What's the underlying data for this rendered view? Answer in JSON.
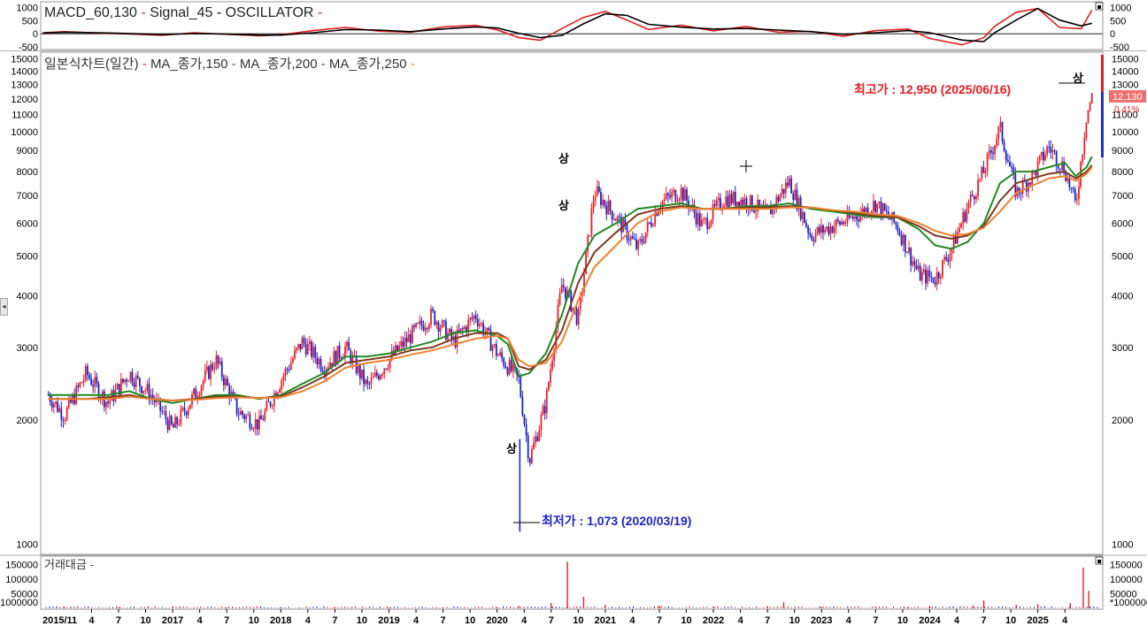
{
  "indicator_header": {
    "macd": "MACD_60,130",
    "signal": "Signal_45",
    "oscillator": "OSCILLATOR",
    "dash": "-"
  },
  "price_header": {
    "chart_name": "일본식차트(일간)",
    "ma1": "MA_종가,150",
    "ma2": "MA_종가,200",
    "ma3": "MA_종가,250",
    "dash": "-"
  },
  "volume_header": {
    "label": "거래대금",
    "dash": "-"
  },
  "annotations": {
    "high_label": "최고가 : 12,950 (2025/06/16)",
    "low_label": "최저가 : 1,073 (2020/03/19)",
    "last_price_badge": "12,130",
    "change_badge": "0.41%",
    "marker_char": "상"
  },
  "colors": {
    "up_candle": "#e8202a",
    "down_candle": "#1e22c8",
    "macd_line": "#e02020",
    "signal_line": "#000000",
    "ma150": "#1f8a1f",
    "ma200": "#7a3b1e",
    "ma250": "#f08030",
    "high_text": "#e02020",
    "low_text": "#1e22c8"
  },
  "icons": [
    "pane-expand-icon",
    "pane-expand-icon",
    "scroll-left-arrow-icon",
    "crosshair-cursor-icon"
  ],
  "chart_data": [
    {
      "type": "line",
      "title": "MACD_60,130 - Signal_45 - OSCILLATOR",
      "yticks": [
        1000,
        500,
        0,
        -500
      ],
      "ytick_labels_left": [
        "1000",
        "500",
        "0",
        "-500"
      ],
      "ytick_labels_right": [
        "1000",
        "500",
        "0",
        "-500"
      ],
      "ylim": [
        -600,
        1150
      ],
      "x": [
        2015.8,
        2016.0,
        2016.3,
        2016.6,
        2016.9,
        2017.2,
        2017.5,
        2017.8,
        2018.0,
        2018.3,
        2018.6,
        2018.9,
        2019.2,
        2019.5,
        2019.8,
        2020.0,
        2020.2,
        2020.4,
        2020.6,
        2020.8,
        2021.0,
        2021.2,
        2021.4,
        2021.7,
        2022.0,
        2022.3,
        2022.6,
        2022.9,
        2023.2,
        2023.5,
        2023.8,
        2024.0,
        2024.3,
        2024.5,
        2024.6,
        2024.8,
        2025.0,
        2025.2,
        2025.4,
        2025.5
      ],
      "series": [
        {
          "name": "MACD_60,130",
          "values": [
            40,
            80,
            30,
            -10,
            -60,
            40,
            -20,
            -80,
            -40,
            120,
            240,
            100,
            60,
            260,
            320,
            150,
            -150,
            -250,
            200,
            620,
            850,
            520,
            160,
            330,
            110,
            280,
            60,
            90,
            -100,
            120,
            180,
            -180,
            -420,
            -150,
            280,
            820,
            960,
            240,
            190,
            900
          ]
        },
        {
          "name": "Signal_45",
          "values": [
            30,
            60,
            40,
            10,
            -30,
            10,
            -10,
            -50,
            -50,
            40,
            160,
            140,
            80,
            180,
            260,
            220,
            20,
            -150,
            -60,
            380,
            760,
            700,
            360,
            250,
            180,
            200,
            140,
            80,
            -20,
            40,
            120,
            40,
            -240,
            -300,
            40,
            520,
            960,
            520,
            300,
            400
          ]
        }
      ]
    },
    {
      "type": "line",
      "title": "일본식차트(일간) - MA_종가,150 - MA_종가,200 - MA_종가,250",
      "yscale": "log",
      "ylim": [
        950,
        15500
      ],
      "yticks": [
        1000,
        2000,
        3000,
        4000,
        5000,
        6000,
        7000,
        8000,
        9000,
        10000,
        11000,
        12000,
        13000,
        14000,
        15000
      ],
      "ytick_labels": [
        "1000",
        "2000",
        "3000",
        "4000",
        "5000",
        "6000",
        "7000",
        "8000",
        "9000",
        "10000",
        "11000",
        "12000",
        "13000",
        "14000",
        "15000"
      ],
      "x_tick_labels": [
        "2015/11",
        "4",
        "7",
        "10",
        "2017",
        "4",
        "7",
        "10",
        "2018",
        "4",
        "7",
        "10",
        "2019",
        "4",
        "7",
        "10",
        "2020",
        "4",
        "7",
        "10",
        "2021",
        "4",
        "7",
        "10",
        "2022",
        "4",
        "7",
        "10",
        "2023",
        "4",
        "7",
        "10",
        "2024",
        "4",
        "7",
        "10",
        "2025",
        "4"
      ],
      "x": [
        2015.85,
        2016.0,
        2016.2,
        2016.4,
        2016.6,
        2016.8,
        2017.0,
        2017.2,
        2017.4,
        2017.6,
        2017.8,
        2018.0,
        2018.2,
        2018.4,
        2018.6,
        2018.8,
        2019.0,
        2019.2,
        2019.4,
        2019.6,
        2019.8,
        2020.0,
        2020.1,
        2020.2,
        2020.3,
        2020.45,
        2020.6,
        2020.75,
        2020.9,
        2021.1,
        2021.3,
        2021.5,
        2021.7,
        2021.9,
        2022.1,
        2022.3,
        2022.5,
        2022.7,
        2022.9,
        2023.1,
        2023.3,
        2023.5,
        2023.7,
        2023.9,
        2024.05,
        2024.2,
        2024.35,
        2024.5,
        2024.65,
        2024.8,
        2024.95,
        2025.1,
        2025.25,
        2025.35,
        2025.45,
        2025.5
      ],
      "series": [
        {
          "name": "Close",
          "values": [
            2300,
            2050,
            2600,
            2200,
            2600,
            2300,
            1900,
            2300,
            2800,
            2100,
            1950,
            2500,
            3100,
            2700,
            3000,
            2400,
            2800,
            3200,
            3600,
            3100,
            3600,
            2900,
            2700,
            2500,
            1600,
            2200,
            4300,
            3500,
            7200,
            6200,
            5200,
            6700,
            7200,
            5900,
            6900,
            6800,
            6300,
            7600,
            5600,
            5900,
            6200,
            6700,
            5900,
            4500,
            4400,
            5200,
            6600,
            8000,
            10200,
            7100,
            7800,
            9200,
            8100,
            6600,
            11000,
            12130
          ]
        },
        {
          "name": "MA_종가,150",
          "values": [
            2300,
            2300,
            2300,
            2300,
            2350,
            2250,
            2200,
            2250,
            2300,
            2300,
            2250,
            2300,
            2450,
            2600,
            2850,
            2850,
            2900,
            3000,
            3100,
            3250,
            3300,
            3200,
            3050,
            2550,
            2600,
            2900,
            3600,
            4800,
            5600,
            6000,
            6500,
            6600,
            6700,
            6500,
            6500,
            6600,
            6600,
            6700,
            6500,
            6400,
            6300,
            6200,
            6200,
            5800,
            5300,
            5200,
            5400,
            6000,
            7500,
            8000,
            8000,
            8200,
            8400,
            7800,
            8200,
            8700
          ]
        },
        {
          "name": "MA_종가,200",
          "values": [
            2250,
            2250,
            2250,
            2270,
            2300,
            2250,
            2230,
            2250,
            2280,
            2280,
            2260,
            2280,
            2400,
            2550,
            2750,
            2800,
            2850,
            2950,
            3000,
            3150,
            3250,
            3250,
            3150,
            2700,
            2650,
            2800,
            3300,
            4300,
            5100,
            5700,
            6300,
            6500,
            6600,
            6500,
            6500,
            6550,
            6550,
            6600,
            6550,
            6450,
            6350,
            6250,
            6200,
            5900,
            5600,
            5500,
            5600,
            5900,
            6800,
            7500,
            7700,
            7900,
            8000,
            7700,
            8000,
            8300
          ]
        },
        {
          "name": "MA_종가,250",
          "values": [
            2250,
            2250,
            2250,
            2250,
            2280,
            2250,
            2230,
            2240,
            2260,
            2270,
            2260,
            2270,
            2350,
            2480,
            2680,
            2750,
            2800,
            2880,
            2950,
            3050,
            3150,
            3200,
            3150,
            2800,
            2700,
            2750,
            3100,
            3900,
            4700,
            5300,
            6000,
            6400,
            6550,
            6500,
            6500,
            6500,
            6500,
            6550,
            6550,
            6450,
            6400,
            6300,
            6250,
            6000,
            5750,
            5600,
            5650,
            5850,
            6400,
            7100,
            7400,
            7700,
            7800,
            7600,
            7900,
            8200
          ]
        }
      ],
      "annotations": [
        {
          "text": "최고가 : 12,950 (2025/06/16)",
          "x": 2025.45,
          "y": 12950
        },
        {
          "text": "최저가 : 1,073 (2020/03/19)",
          "x": 2020.21,
          "y": 1073
        }
      ]
    },
    {
      "type": "bar",
      "title": "거래대금",
      "yticks": [
        150000,
        100000,
        50000,
        1000000
      ],
      "ytick_labels_left": [
        "150000",
        "100000",
        "50000",
        "1000000"
      ],
      "ytick_labels_right": [
        "150000",
        "100000",
        "50000",
        "*1000000"
      ],
      "ylim": [
        0,
        170000
      ],
      "x": [
        2016.0,
        2016.5,
        2017.0,
        2017.5,
        2018.0,
        2018.5,
        2019.0,
        2019.5,
        2020.0,
        2020.2,
        2020.5,
        2020.65,
        2020.8,
        2021.0,
        2021.5,
        2022.0,
        2022.5,
        2022.65,
        2023.0,
        2023.5,
        2023.8,
        2024.0,
        2024.4,
        2024.5,
        2024.8,
        2025.0,
        2025.3,
        2025.42,
        2025.47
      ],
      "values": [
        4000,
        3000,
        5000,
        3000,
        4000,
        3000,
        3000,
        4000,
        3000,
        9000,
        18000,
        160000,
        40000,
        12000,
        9000,
        6000,
        8000,
        20000,
        5000,
        6000,
        5000,
        8000,
        10000,
        28000,
        12000,
        14000,
        18000,
        140000,
        60000
      ]
    }
  ]
}
